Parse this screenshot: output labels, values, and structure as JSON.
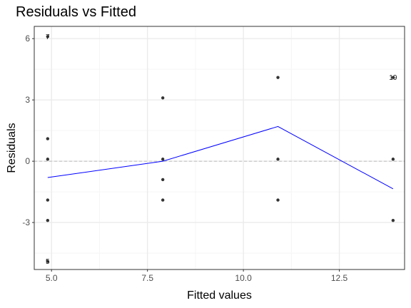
{
  "chart_data": {
    "type": "scatter",
    "title": "Residuals vs Fitted",
    "xlabel": "Fitted values",
    "ylabel": "Residuals",
    "xlim": [
      4.55,
      14.2
    ],
    "ylim": [
      -5.3,
      6.6
    ],
    "x_ticks": [
      5.0,
      7.5,
      10.0,
      12.5
    ],
    "x_tick_labels": [
      "5.0",
      "7.5",
      "10.0",
      "12.5"
    ],
    "y_ticks": [
      -3,
      0,
      3,
      6
    ],
    "y_tick_labels": [
      "-3",
      "0",
      "3",
      "6"
    ],
    "grid": true,
    "legend": "none",
    "points": [
      {
        "x": 4.9,
        "y": 6.1
      },
      {
        "x": 4.9,
        "y": 1.1
      },
      {
        "x": 4.9,
        "y": 0.1
      },
      {
        "x": 4.9,
        "y": -1.9
      },
      {
        "x": 4.9,
        "y": -2.9
      },
      {
        "x": 4.9,
        "y": -4.9
      },
      {
        "x": 7.9,
        "y": 3.1
      },
      {
        "x": 7.9,
        "y": 0.1
      },
      {
        "x": 7.9,
        "y": -0.9
      },
      {
        "x": 7.9,
        "y": -1.9
      },
      {
        "x": 10.9,
        "y": 4.1
      },
      {
        "x": 10.9,
        "y": 0.1
      },
      {
        "x": 10.9,
        "y": -1.9
      },
      {
        "x": 13.9,
        "y": 4.1
      },
      {
        "x": 13.9,
        "y": 0.1
      },
      {
        "x": 13.9,
        "y": -2.9
      }
    ],
    "point_labels": [
      {
        "x": 4.9,
        "y": 6.1,
        "text": "7"
      },
      {
        "x": 4.9,
        "y": -4.9,
        "text": "5"
      },
      {
        "x": 13.9,
        "y": 4.1,
        "text": "19"
      }
    ],
    "smooth_line": {
      "x": [
        4.9,
        7.9,
        10.9,
        13.9
      ],
      "y": [
        -0.8,
        0.0,
        1.7,
        -1.35
      ],
      "color": "#0000ff"
    },
    "reference_line": {
      "y": 0,
      "color": "#bdbdbd"
    },
    "colors": {
      "points": "#333333",
      "panel_border": "#333333",
      "grid_major": "#ebebeb",
      "grid_minor": "#f5f5f5"
    }
  }
}
